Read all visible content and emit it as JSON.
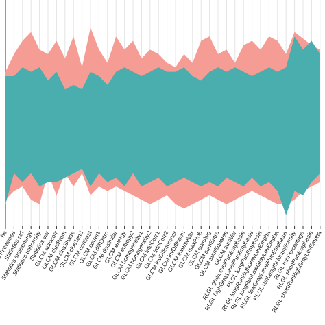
{
  "chart_data": {
    "type": "area_band",
    "categories": [
      "hs",
      "Statistics Skewness",
      "Statistics std",
      "Statistics stateenergy",
      "Statistics uniformity",
      "Statistics var",
      "GLCM autocorr",
      "GLCM clusProm",
      "GLCM clusShade",
      "GLCM clusTend",
      "GLCM contrast",
      "GLCM correl1",
      "GLCM diffEntro",
      "GLCM dissimilar",
      "GLCM energy",
      "GLCM entropy2",
      "GLCM homogeneity1",
      "GLCM homogeneity2",
      "GLCM infoCorr1",
      "GLCM infoCorr2",
      "GLCM invDiffmomnor",
      "GLCM invDiffnorm",
      "GLCM inverseVar",
      "GLCM maxProb",
      "GLCM sumAvg",
      "GLCM sumEntro",
      "GLCM sumSquares",
      "GLCM sumVar",
      "RLGL grayLevelRunEmphasis",
      "RLGL highGrayLevelRunEmphasis",
      "RLGL longRunEmphasis",
      "RLGL longRunHighGrayLevEmpha",
      "RLGL longRunLowGrayLevEmpha",
      "RLGL lowGrayLevelRunEmphasis",
      "RLGL runLengthNonuniformity",
      "RLGL runPercentage",
      "RLGL shortRunEmphasis",
      "RLGL shortRunHighGrayLevEmpha"
    ],
    "series": [
      {
        "color": "#f59c95",
        "values": [
          70,
          78,
          84,
          88,
          80,
          78,
          84,
          76,
          86,
          72,
          90,
          80,
          74,
          86,
          80,
          84,
          76,
          80,
          78,
          74,
          72,
          78,
          74,
          84,
          86,
          78,
          80,
          74,
          82,
          84,
          80,
          86,
          84,
          78,
          88,
          85,
          82,
          80
        ],
        "lower": [
          12,
          16,
          18,
          12,
          10,
          24,
          14,
          24,
          18,
          24,
          14,
          18,
          16,
          18,
          16,
          14,
          12,
          10,
          12,
          14,
          10,
          8,
          10,
          12,
          14,
          12,
          10,
          12,
          14,
          16,
          14,
          12,
          10,
          10,
          12,
          16,
          18,
          20
        ]
      },
      {
        "color": "#4aaeae",
        "values": [
          68,
          68,
          72,
          70,
          72,
          66,
          70,
          62,
          64,
          62,
          70,
          68,
          64,
          70,
          72,
          70,
          68,
          70,
          72,
          70,
          70,
          72,
          68,
          66,
          70,
          72,
          70,
          72,
          70,
          68,
          70,
          72,
          70,
          72,
          86,
          80,
          84,
          78
        ],
        "lower": [
          10,
          24,
          20,
          24,
          18,
          20,
          20,
          22,
          24,
          26,
          18,
          24,
          20,
          22,
          18,
          24,
          18,
          20,
          22,
          18,
          20,
          22,
          20,
          18,
          20,
          18,
          22,
          20,
          18,
          22,
          18,
          20,
          16,
          5,
          16,
          14,
          20,
          24
        ]
      }
    ],
    "ylim": [
      0,
      100
    ],
    "grid": true
  }
}
